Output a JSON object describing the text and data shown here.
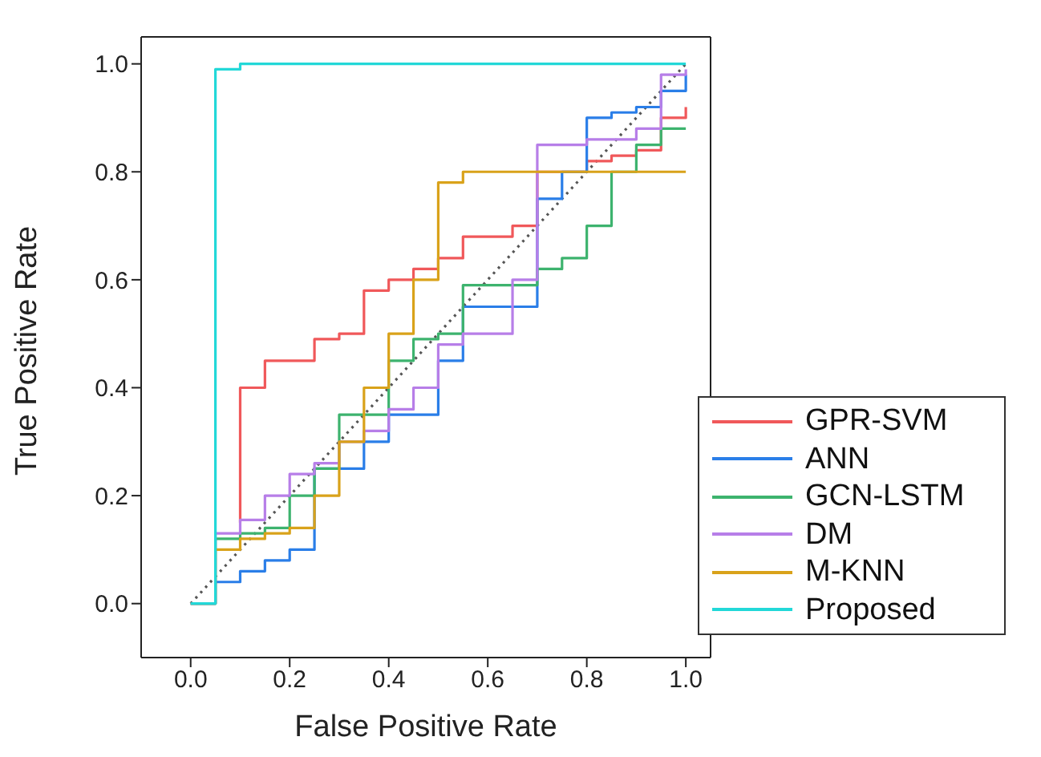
{
  "chart_data": {
    "type": "step",
    "xlabel": "False Positive Rate",
    "ylabel": "True Positive Rate",
    "xlim": [
      -0.1,
      1.05
    ],
    "ylim": [
      -0.1,
      1.05
    ],
    "xticks": [
      {
        "value": 0,
        "label": "0.0"
      },
      {
        "value": 0.2,
        "label": "0.2"
      },
      {
        "value": 0.4,
        "label": "0.4"
      },
      {
        "value": 0.6,
        "label": "0.6"
      },
      {
        "value": 0.8,
        "label": "0.8"
      },
      {
        "value": 1,
        "label": "1.0"
      }
    ],
    "yticks": [
      {
        "value": 0,
        "label": "0.0"
      },
      {
        "value": 0.2,
        "label": "0.2"
      },
      {
        "value": 0.4,
        "label": "0.4"
      },
      {
        "value": 0.6,
        "label": "0.6"
      },
      {
        "value": 0.8,
        "label": "0.8"
      },
      {
        "value": 1,
        "label": "1.0"
      }
    ],
    "grid": false,
    "legend": "bottom right",
    "marker": "none",
    "series": [
      {
        "type": "line",
        "line_style": "dotted",
        "color": "#555555",
        "x": [
          0,
          1
        ],
        "values": [
          0,
          1
        ]
      },
      {
        "name": "GPR-SVM",
        "color": "#f0585a",
        "x": [
          0.1,
          0.1,
          0.15,
          0.25,
          0.3,
          0.35,
          0.4,
          0.45,
          0.5,
          0.55,
          0.65,
          0.7,
          0.8,
          0.85,
          0.9,
          0.95,
          1.0
        ],
        "values": [
          0.15,
          0.4,
          0.45,
          0.49,
          0.5,
          0.58,
          0.6,
          0.62,
          0.64,
          0.68,
          0.7,
          0.8,
          0.82,
          0.83,
          0.84,
          0.9,
          0.92
        ]
      },
      {
        "name": "ANN",
        "color": "#2a7ee8",
        "x": [
          0,
          0.05,
          0.1,
          0.15,
          0.2,
          0.25,
          0.35,
          0.4,
          0.5,
          0.55,
          0.7,
          0.75,
          0.8,
          0.85,
          0.9,
          0.95,
          1.0
        ],
        "values": [
          0,
          0.04,
          0.06,
          0.08,
          0.1,
          0.25,
          0.3,
          0.35,
          0.45,
          0.55,
          0.75,
          0.8,
          0.9,
          0.91,
          0.92,
          0.95,
          0.98
        ]
      },
      {
        "name": "GCN-LSTM",
        "color": "#3db36e",
        "x": [
          0,
          0.05,
          0.1,
          0.15,
          0.2,
          0.25,
          0.3,
          0.4,
          0.45,
          0.5,
          0.55,
          0.7,
          0.75,
          0.8,
          0.85,
          0.9,
          0.95,
          1.0
        ],
        "values": [
          0,
          0.12,
          0.13,
          0.14,
          0.2,
          0.25,
          0.35,
          0.45,
          0.49,
          0.5,
          0.59,
          0.62,
          0.64,
          0.7,
          0.8,
          0.85,
          0.88,
          0.88
        ]
      },
      {
        "name": "DM",
        "color": "#b77ee8",
        "x": [
          0,
          0.05,
          0.1,
          0.15,
          0.2,
          0.25,
          0.3,
          0.35,
          0.4,
          0.45,
          0.5,
          0.55,
          0.65,
          0.7,
          0.8,
          0.9,
          0.95,
          1.0
        ],
        "values": [
          0,
          0.13,
          0.155,
          0.2,
          0.24,
          0.26,
          0.3,
          0.32,
          0.36,
          0.4,
          0.48,
          0.5,
          0.6,
          0.85,
          0.86,
          0.88,
          0.98,
          0.99
        ]
      },
      {
        "name": "M-KNN",
        "color": "#d9a21a",
        "x": [
          0,
          0.05,
          0.1,
          0.15,
          0.2,
          0.25,
          0.3,
          0.35,
          0.4,
          0.45,
          0.5,
          0.55,
          1.0
        ],
        "values": [
          0,
          0.1,
          0.12,
          0.13,
          0.14,
          0.2,
          0.3,
          0.4,
          0.5,
          0.6,
          0.78,
          0.8,
          0.8
        ]
      },
      {
        "name": "Proposed",
        "color": "#22d8d8",
        "x": [
          0,
          0.05,
          0.1,
          1.0
        ],
        "values": [
          0,
          0.99,
          1.0,
          1.0
        ]
      }
    ]
  }
}
